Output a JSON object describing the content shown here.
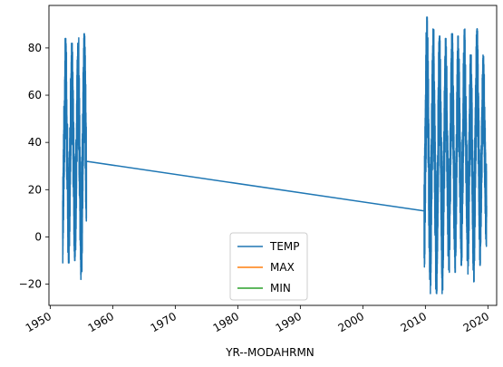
{
  "chart_data": {
    "type": "line",
    "title": "",
    "xlabel": "YR--MODAHRMN",
    "ylabel": "",
    "xlim": [
      1949.8,
      2021.4
    ],
    "ylim": [
      -29,
      98
    ],
    "x_ticks": [
      1950,
      1960,
      1970,
      1980,
      1990,
      2000,
      2010,
      2020
    ],
    "x_tick_labels": [
      "1950",
      "1960",
      "1970",
      "1980",
      "1990",
      "2000",
      "2010",
      "2020"
    ],
    "y_ticks": [
      -20,
      0,
      20,
      40,
      60,
      80
    ],
    "y_tick_labels": [
      "−20",
      "0",
      "20",
      "40",
      "60",
      "80"
    ],
    "grid": false,
    "legend_position": "lower center",
    "series": [
      {
        "name": "TEMP",
        "color": "#1f77b4",
        "segments": [
          {
            "x_start": 1952.0,
            "x_end": 1955.8,
            "oscillation_min": -18,
            "oscillation_max": 86,
            "seasonal_peaks": [
              84,
              82,
              86
            ],
            "seasonal_troughs": [
              -11,
              -10,
              -18
            ]
          },
          {
            "x_start": 2009.8,
            "x_end": 2019.8,
            "oscillation_min": -24,
            "oscillation_max": 93,
            "seasonal_peaks": [
              93,
              88,
              85,
              84,
              86,
              85,
              88,
              77,
              88,
              77
            ],
            "seasonal_troughs": [
              -18,
              -24,
              -24,
              -14,
              -15,
              -12,
              -10,
              -19,
              -12,
              -4
            ]
          }
        ],
        "connector": {
          "x": [
            1955.8,
            2009.8
          ],
          "y": [
            32,
            11
          ]
        }
      },
      {
        "name": "MAX",
        "color": "#ff7f0e",
        "x": [],
        "y": []
      },
      {
        "name": "MIN",
        "color": "#2ca02c",
        "x": [],
        "y": []
      }
    ]
  }
}
